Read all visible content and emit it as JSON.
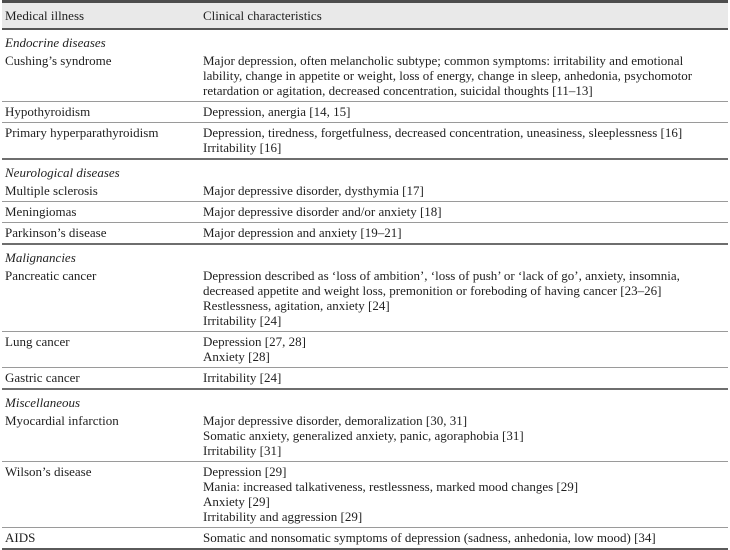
{
  "colors": {
    "header_band": "#e9e9e9",
    "rule_dark": "#4d4d4d",
    "rule_section": "#6e6e6e",
    "rule_row": "#9a9a9a",
    "text": "#1f1f1f"
  },
  "table": {
    "columns": [
      {
        "label": "Medical illness"
      },
      {
        "label": "Clinical characteristics"
      }
    ],
    "sections": [
      {
        "title": "Endocrine diseases",
        "rows": [
          {
            "illness": "Cushing’s syndrome",
            "characteristics": [
              "Major depression, often melancholic subtype; common symptoms: irritability and emotional lability, change in appetite or weight, loss of energy, change in sleep, anhedonia, psychomotor retardation or agitation, decreased concentration, suicidal thoughts [11–13]"
            ]
          },
          {
            "illness": "Hypothyroidism",
            "characteristics": [
              "Depression, anergia [14, 15]"
            ]
          },
          {
            "illness": "Primary hyperparathyroidism",
            "characteristics": [
              "Depression, tiredness, forgetfulness, decreased concentration, uneasiness, sleeplessness [16]",
              "Irritability [16]"
            ]
          }
        ]
      },
      {
        "title": "Neurological diseases",
        "rows": [
          {
            "illness": "Multiple sclerosis",
            "characteristics": [
              "Major depressive disorder, dysthymia [17]"
            ]
          },
          {
            "illness": "Meningiomas",
            "characteristics": [
              "Major depressive disorder and/or anxiety [18]"
            ]
          },
          {
            "illness": "Parkinson’s disease",
            "characteristics": [
              "Major depression and anxiety [19–21]"
            ]
          }
        ]
      },
      {
        "title": "Malignancies",
        "rows": [
          {
            "illness": "Pancreatic cancer",
            "characteristics": [
              "Depression described as ‘loss of ambition’, ‘loss of push’ or ‘lack of go’, anxiety, insomnia, decreased appetite and weight loss, premonition or foreboding of having cancer [23–26]",
              "Restlessness, agitation, anxiety [24]",
              "Irritability [24]"
            ]
          },
          {
            "illness": "Lung cancer",
            "characteristics": [
              "Depression [27, 28]",
              "Anxiety [28]"
            ]
          },
          {
            "illness": "Gastric cancer",
            "characteristics": [
              "Irritability [24]"
            ]
          }
        ]
      },
      {
        "title": "Miscellaneous",
        "rows": [
          {
            "illness": "Myocardial infarction",
            "characteristics": [
              "Major depressive disorder, demoralization [30, 31]",
              "Somatic anxiety, generalized anxiety, panic, agoraphobia [31]",
              "Irritability [31]"
            ]
          },
          {
            "illness": "Wilson’s disease",
            "characteristics": [
              "Depression [29]",
              "Mania: increased talkativeness, restlessness, marked mood changes [29]",
              "Anxiety [29]",
              "Irritability and aggression [29]"
            ]
          },
          {
            "illness": "AIDS",
            "characteristics": [
              "Somatic and nonsomatic symptoms of depression (sadness, anhedonia, low mood) [34]"
            ]
          }
        ]
      }
    ]
  }
}
